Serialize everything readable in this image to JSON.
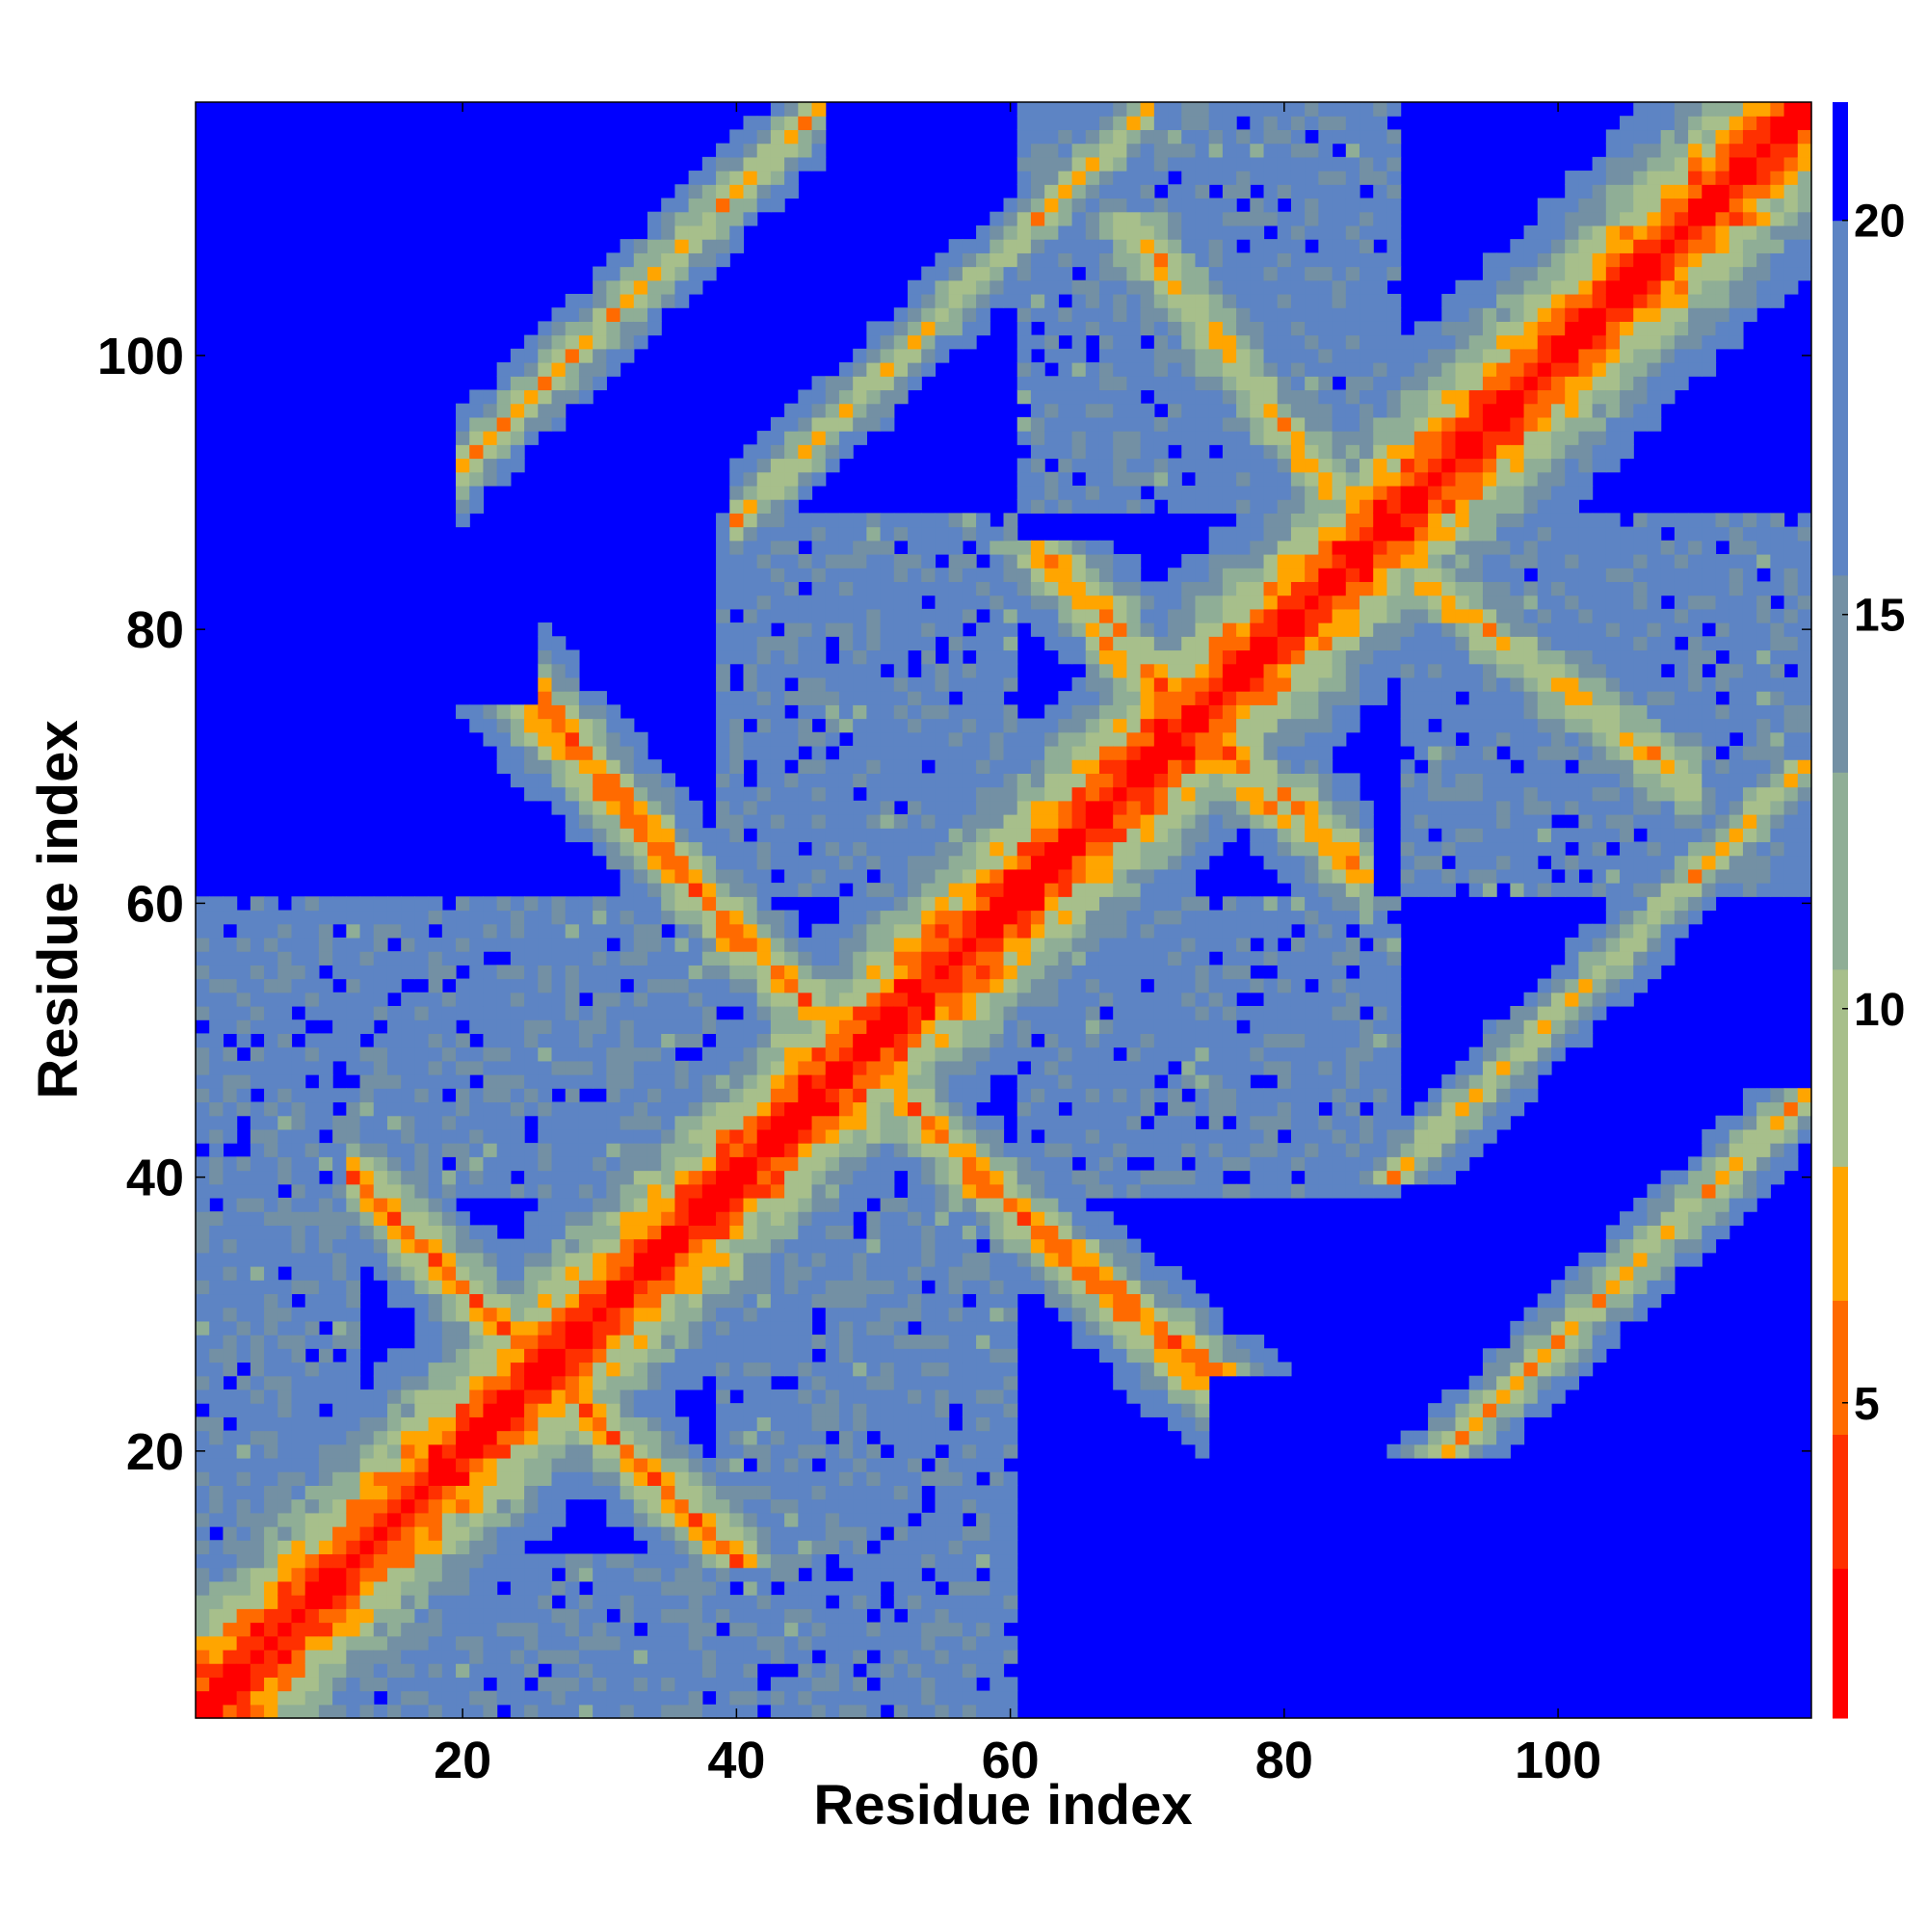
{
  "chart_data": {
    "type": "heatmap",
    "title": "",
    "xlabel": "Residue index",
    "ylabel": "Residue index",
    "n_residues": 118,
    "xlim": [
      1,
      118
    ],
    "ylim": [
      1,
      118
    ],
    "x_ticks": [
      20,
      40,
      60,
      80,
      100
    ],
    "y_ticks": [
      20,
      40,
      60,
      80,
      100
    ],
    "colorbar": {
      "ticks": [
        5,
        10,
        15,
        20
      ],
      "range": [
        1,
        21.5
      ],
      "colors": [
        "#ff0000",
        "#ff3000",
        "#ff6a00",
        "#ffa500",
        "#a7bf8b",
        "#8fae96",
        "#7390a4",
        "#5d84c4",
        "#0000ff"
      ],
      "boundaries": [
        1,
        2.9,
        4.6,
        6.3,
        8,
        10.5,
        13,
        15.5,
        20,
        21.5
      ],
      "cutoff_color": "#0000ff"
    },
    "features": {
      "diagonal_band_halfwidth": 4,
      "helix_blocks": [
        [
          1,
          12
        ],
        [
          13,
          38
        ],
        [
          39,
          60
        ],
        [
          61,
          88
        ],
        [
          89,
          118
        ]
      ],
      "antiparallel_contacts": [
        {
          "i_range": [
            14,
            28
          ],
          "j_range": [
            38,
            24
          ],
          "min_distance": 5
        },
        {
          "i_range": [
            28,
            38
          ],
          "j_range": [
            72,
            60
          ],
          "min_distance": 5
        },
        {
          "i_range": [
            40,
            58
          ],
          "j_range": [
            58,
            40
          ],
          "min_distance": 6
        },
        {
          "i_range": [
            60,
            72
          ],
          "j_range": [
            38,
            27
          ],
          "min_distance": 6
        },
        {
          "i_range": [
            68,
            84
          ],
          "j_range": [
            78,
            64
          ],
          "min_distance": 6
        },
        {
          "i_range": [
            92,
            108
          ],
          "j_range": [
            82,
            70
          ],
          "min_distance": 7
        }
      ],
      "parallel_contacts": [
        {
          "offset": 72,
          "range": [
            20,
            46
          ],
          "min_distance": 7
        },
        {
          "offset": 48,
          "range": [
            40,
            70
          ],
          "min_distance": 8
        }
      ]
    }
  }
}
